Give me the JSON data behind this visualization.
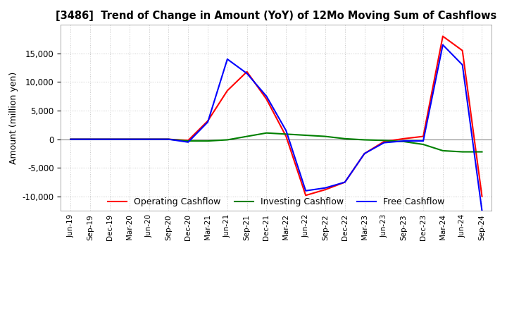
{
  "title": "[3486]  Trend of Change in Amount (YoY) of 12Mo Moving Sum of Cashflows",
  "ylabel": "Amount (million yen)",
  "background_color": "#ffffff",
  "grid_color": "#c8c8c8",
  "x_labels": [
    "Jun-19",
    "Sep-19",
    "Dec-19",
    "Mar-20",
    "Jun-20",
    "Sep-20",
    "Dec-20",
    "Mar-21",
    "Jun-21",
    "Sep-21",
    "Dec-21",
    "Mar-22",
    "Jun-22",
    "Sep-22",
    "Dec-22",
    "Mar-23",
    "Jun-23",
    "Sep-23",
    "Dec-23",
    "Mar-24",
    "Jun-24",
    "Sep-24"
  ],
  "operating": [
    0,
    0,
    0,
    0,
    0,
    0,
    -200,
    3200,
    8500,
    11800,
    7000,
    500,
    -9800,
    -8800,
    -7500,
    -2500,
    -400,
    100,
    500,
    18000,
    15500,
    -10000
  ],
  "investing": [
    0,
    0,
    0,
    0,
    0,
    0,
    -300,
    -300,
    -100,
    500,
    1100,
    900,
    700,
    500,
    100,
    -100,
    -200,
    -400,
    -900,
    -2000,
    -2200,
    -2200
  ],
  "free": [
    0,
    0,
    0,
    0,
    0,
    0,
    -500,
    3000,
    14000,
    11500,
    7500,
    1500,
    -9000,
    -8500,
    -7500,
    -2500,
    -600,
    -300,
    -300,
    16500,
    13000,
    -12500
  ],
  "operating_color": "#ff0000",
  "investing_color": "#008000",
  "free_color": "#0000ff",
  "ylim": [
    -12500,
    20000
  ],
  "yticks": [
    -10000,
    -5000,
    0,
    5000,
    10000,
    15000
  ],
  "linewidth": 1.5
}
